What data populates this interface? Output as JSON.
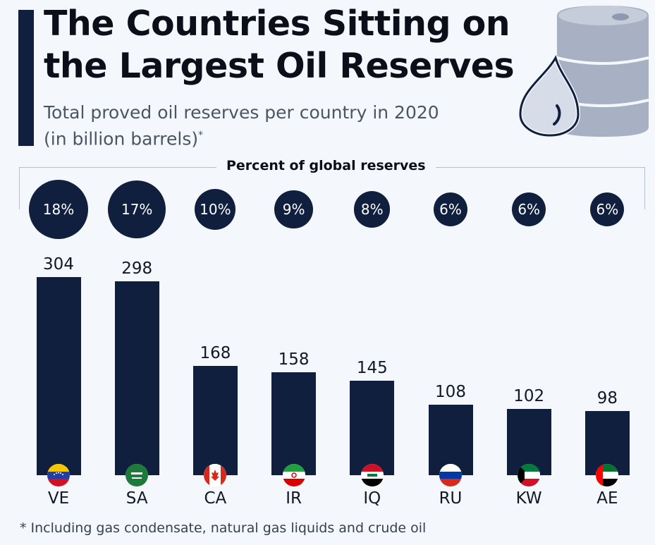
{
  "header": {
    "title_line1": "The Countries Sitting on",
    "title_line2": "the Largest Oil Reserves",
    "subtitle_line1": "Total proved oil reserves per country in 2020",
    "subtitle_line2": "(in billion barrels)",
    "subtitle_mark": "*",
    "icon": "oil-barrel-drop-icon"
  },
  "legend": {
    "title": "Percent of global reserves"
  },
  "footnote": "* Including gas condensate, natural gas liquids and crude oil",
  "colors": {
    "bar": "#0f1f3d",
    "background": "#f4f7fb",
    "icon": "#a8b1c4"
  },
  "chart_data": {
    "type": "bar",
    "title": "The Countries Sitting on the Largest Oil Reserves",
    "subtitle": "Total proved oil reserves per country in 2020 (in billion barrels)*",
    "categories": [
      "VE",
      "SA",
      "CA",
      "IR",
      "IQ",
      "RU",
      "KW",
      "AE"
    ],
    "values": [
      304,
      298,
      168,
      158,
      145,
      108,
      102,
      98
    ],
    "value_labels": [
      "304",
      "298",
      "168",
      "158",
      "145",
      "108",
      "102",
      "98"
    ],
    "percent_of_global": [
      18,
      17,
      10,
      9,
      8,
      6,
      6,
      6
    ],
    "percent_labels": [
      "18%",
      "17%",
      "10%",
      "9%",
      "8%",
      "6%",
      "6%",
      "6%"
    ],
    "flags": [
      "venezuela-flag-icon",
      "saudi-arabia-flag-icon",
      "canada-flag-icon",
      "iran-flag-icon",
      "iraq-flag-icon",
      "russia-flag-icon",
      "kuwait-flag-icon",
      "uae-flag-icon"
    ],
    "xlabel": "",
    "ylabel": "",
    "ylim": [
      0,
      304
    ],
    "grid": false
  }
}
